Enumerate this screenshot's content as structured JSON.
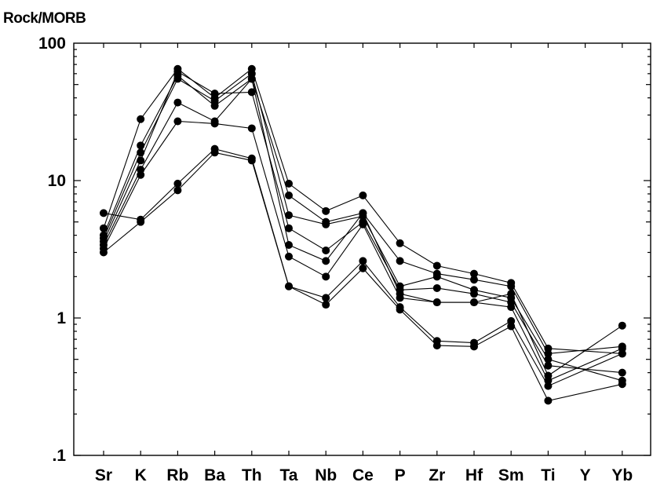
{
  "chart_data": {
    "type": "line",
    "ylabel": "Rock/MORB",
    "xlabel": "",
    "yscale": "log",
    "ylim": [
      0.1,
      100
    ],
    "yticks": [
      {
        "value": 100,
        "label": "100"
      },
      {
        "value": 10,
        "label": "10"
      },
      {
        "value": 1,
        "label": "1"
      },
      {
        "value": 0.1,
        "label": ".1"
      }
    ],
    "categories": [
      "Sr",
      "K",
      "Rb",
      "Ba",
      "Th",
      "Ta",
      "Nb",
      "Ce",
      "P",
      "Zr",
      "Hf",
      "Sm",
      "Ti",
      "Y",
      "Yb"
    ],
    "grid": false,
    "legend": "none",
    "line_color": "#000000",
    "marker": "filled-circle",
    "series": [
      {
        "values": [
          4.5,
          28,
          65,
          40,
          65,
          9.5,
          6,
          7.8,
          3.5,
          2.4,
          2.1,
          1.8,
          0.6,
          null,
          0.55
        ]
      },
      {
        "values": [
          4.0,
          18,
          58,
          35,
          55,
          7.8,
          5,
          5.8,
          2.6,
          2.1,
          1.9,
          1.7,
          0.55,
          null,
          0.62
        ]
      },
      {
        "values": [
          3.8,
          16,
          55,
          38,
          60,
          5.6,
          4.8,
          5.5,
          1.7,
          2.0,
          1.6,
          1.4,
          0.5,
          null,
          0.35
        ]
      },
      {
        "values": [
          3.6,
          14,
          62,
          43,
          44,
          4.5,
          3.1,
          5.0,
          1.6,
          1.65,
          1.5,
          1.3,
          0.45,
          null,
          0.4
        ]
      },
      {
        "values": [
          3.4,
          12,
          37,
          27,
          55,
          3.4,
          2.6,
          5.8,
          1.5,
          1.3,
          1.3,
          1.5,
          0.38,
          null,
          0.88
        ]
      },
      {
        "values": [
          3.2,
          11,
          27,
          26,
          24,
          2.8,
          2.0,
          4.8,
          1.4,
          1.3,
          1.3,
          1.2,
          0.35,
          null,
          0.6
        ]
      },
      {
        "values": [
          5.8,
          5.2,
          9.5,
          17,
          14.5,
          1.7,
          1.4,
          2.6,
          1.2,
          0.68,
          0.66,
          0.95,
          0.32,
          null,
          0.55
        ]
      },
      {
        "values": [
          3.0,
          5.0,
          8.5,
          16,
          14,
          1.7,
          1.25,
          2.3,
          1.15,
          0.63,
          0.62,
          0.87,
          0.25,
          null,
          0.33
        ]
      }
    ]
  }
}
